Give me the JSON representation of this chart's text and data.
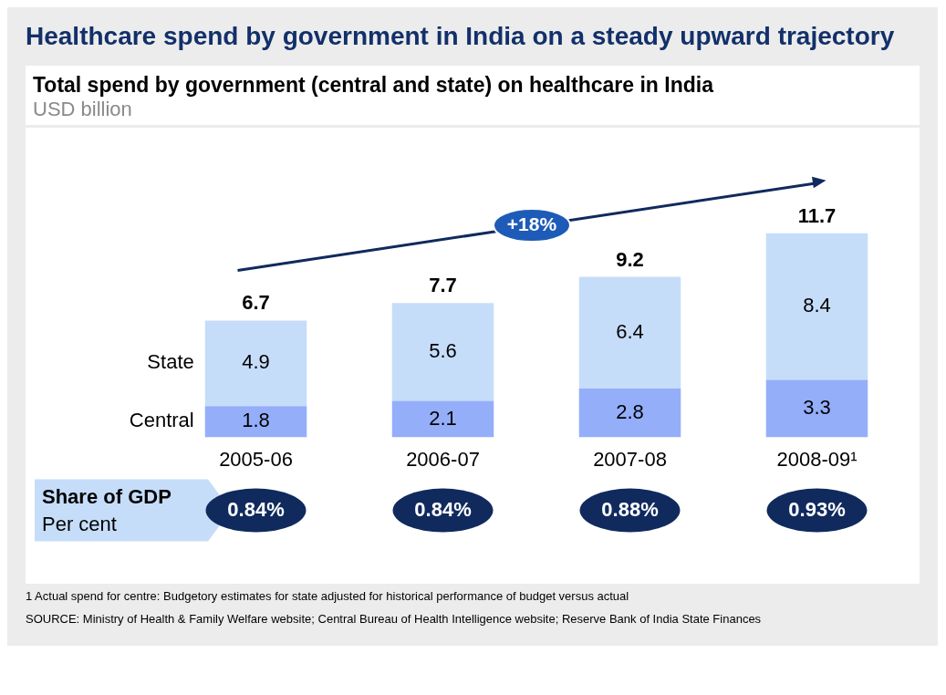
{
  "chart_data": {
    "type": "bar",
    "title": "Healthcare spend by government in India on a steady upward trajectory",
    "subtitle": "Total spend by government (central and state) on healthcare in India",
    "categories": [
      "2005-06",
      "2006-07",
      "2007-08",
      "2008-09¹"
    ],
    "stacked": true,
    "data_labels": true,
    "legend": false,
    "grid": false,
    "series": [
      {
        "name": "Central",
        "color": "#94aef9",
        "values": [
          1.8,
          2.1,
          2.8,
          3.3
        ]
      },
      {
        "name": "State",
        "color": "#c6ddf9",
        "values": [
          4.9,
          5.6,
          6.4,
          8.4
        ]
      }
    ],
    "totals": [
      "6.7",
      "7.7",
      "9.2",
      "11.7"
    ],
    "annotations": [
      "+18%",
      "USD billion",
      "Share of GDP",
      "Per cent",
      "0.84%",
      "0.84%",
      "0.88%",
      "0.93%",
      "1 Actual spend for centre: Budgetory estimates for state adjusted for historical performance of budget versus actual",
      "SOURCE: Ministry of Health & Family Welfare website; Central Bureau of Health Intelligence website; Reserve Bank of India State Finances"
    ]
  }
}
